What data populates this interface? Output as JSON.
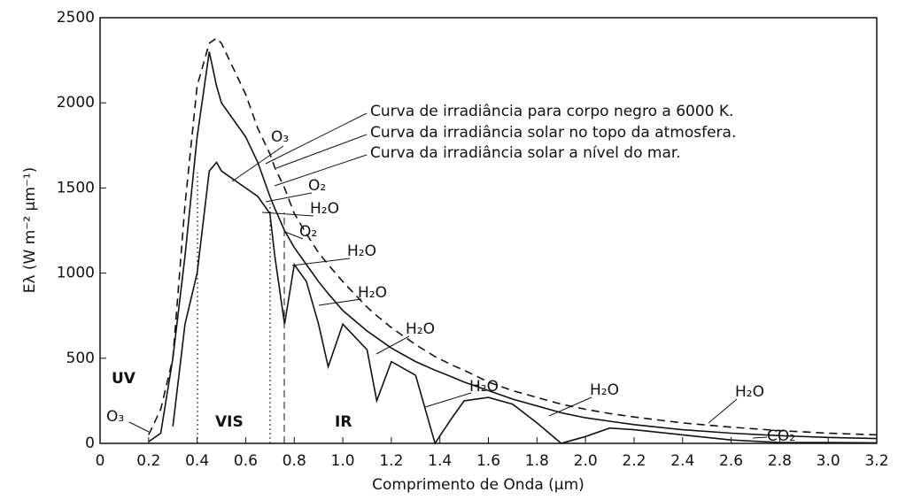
{
  "chart_data": {
    "type": "line",
    "xlabel": "Comprimento de Onda (µm)",
    "ylabel": "Eλ (W m⁻² µm⁻¹)",
    "x": [
      0.2,
      0.25,
      0.3,
      0.35,
      0.4,
      0.45,
      0.48,
      0.5,
      0.55,
      0.6,
      0.65,
      0.7,
      0.72,
      0.76,
      0.8,
      0.85,
      0.9,
      0.94,
      1.0,
      1.1,
      1.14,
      1.2,
      1.3,
      1.38,
      1.45,
      1.5,
      1.6,
      1.7,
      1.8,
      1.9,
      2.0,
      2.1,
      2.2,
      2.4,
      2.6,
      2.8,
      3.0,
      3.2
    ],
    "series": [
      {
        "name": "Curva de irradiância para corpo negro a 6000 K.",
        "color": "#111111",
        "dashed": true,
        "values": [
          50,
          200,
          500,
          1400,
          2100,
          2350,
          2380,
          2350,
          2200,
          2050,
          1850,
          1700,
          1620,
          1500,
          1350,
          1230,
          1120,
          1050,
          950,
          800,
          750,
          680,
          580,
          510,
          460,
          430,
          360,
          310,
          270,
          230,
          200,
          175,
          155,
          120,
          95,
          75,
          60,
          50
        ]
      },
      {
        "name": "Curva da irradiância solar no topo da atmosfera.",
        "color": "#111111",
        "dashed": false,
        "values": [
          10,
          60,
          500,
          1100,
          1800,
          2300,
          2100,
          2000,
          1900,
          1800,
          1650,
          1450,
          1380,
          1250,
          1150,
          1050,
          950,
          880,
          780,
          660,
          620,
          560,
          480,
          430,
          390,
          360,
          310,
          260,
          220,
          180,
          150,
          130,
          110,
          80,
          60,
          45,
          35,
          28
        ]
      },
      {
        "name": "Curva da irradiância solar a nível do mar.",
        "color": "#111111",
        "dashed": false,
        "values": [
          null,
          null,
          100,
          700,
          1000,
          1600,
          1650,
          1600,
          1550,
          1500,
          1450,
          1350,
          1100,
          700,
          1050,
          950,
          700,
          450,
          700,
          550,
          250,
          480,
          400,
          0,
          150,
          250,
          270,
          230,
          120,
          0,
          40,
          90,
          80,
          50,
          20,
          5,
          5,
          3
        ]
      }
    ],
    "xlim": [
      0,
      3.2
    ],
    "xticks": [
      0,
      0.2,
      0.4,
      0.6,
      0.8,
      {
        "value": 1,
        "label": "1.0"
      },
      1.2,
      1.4,
      1.6,
      1.8,
      {
        "value": 2,
        "label": "2.0"
      },
      2.2,
      2.4,
      2.6,
      2.8,
      {
        "value": 3,
        "label": "3.0"
      },
      3.2
    ],
    "ylim": [
      0,
      2500
    ],
    "yticks": [
      0,
      500,
      1000,
      1500,
      2000,
      2500
    ],
    "annotations": [
      "O₃",
      "O₂",
      "H₂O",
      "O₂",
      "H₂O",
      "H₂O",
      "H₂O",
      "H₂O",
      "H₂O",
      "H₂O",
      "CO₂",
      "O₃",
      "UV",
      "VIS",
      "IR"
    ]
  }
}
